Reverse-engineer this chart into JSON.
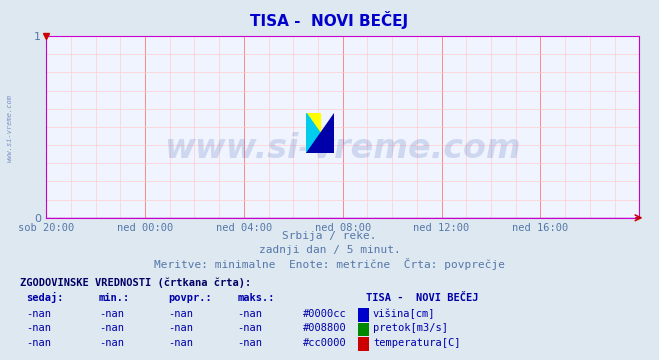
{
  "title": "TISA -  NOVI BEČEJ",
  "title_color": "#0000cc",
  "bg_color": "#dde8f0",
  "plot_bg_color": "#f0f4ff",
  "grid_color_major": "#ff8888",
  "grid_color_minor": "#ffcccc",
  "axis_color": "#cc00cc",
  "tick_color": "#5577aa",
  "ylim": [
    0,
    1
  ],
  "xtick_labels": [
    "sob 20:00",
    "ned 00:00",
    "ned 04:00",
    "ned 08:00",
    "ned 12:00",
    "ned 16:00"
  ],
  "watermark_text": "www.si-vreme.com",
  "watermark_color": "#3355aa",
  "watermark_alpha": 0.18,
  "side_text": "www.si-vreme.com",
  "subtitle1": "Srbija / reke.",
  "subtitle2": "zadnji dan / 5 minut.",
  "subtitle3": "Meritve: minimalne  Enote: metrične  Črta: povprečje",
  "subtitle_color": "#5577aa",
  "table_header": "ZGODOVINSKE VREDNOSTI (črtkana črta):",
  "table_cols": [
    "sedaj:",
    "min.:",
    "povpr.:",
    "maks.:"
  ],
  "table_station": "TISA -  NOVI BEČEJ",
  "table_rows": [
    [
      "-nan",
      "-nan",
      "-nan",
      "-nan",
      "#0000cc",
      "višina[cm]"
    ],
    [
      "-nan",
      "-nan",
      "-nan",
      "-nan",
      "#008800",
      "pretok[m3/s]"
    ],
    [
      "-nan",
      "-nan",
      "-nan",
      "-nan",
      "#cc0000",
      "temperatura[C]"
    ]
  ],
  "logo_yellow": "#ffff00",
  "logo_cyan": "#00ccee",
  "logo_blue": "#0000aa",
  "left_text": "www.si-vreme.com"
}
